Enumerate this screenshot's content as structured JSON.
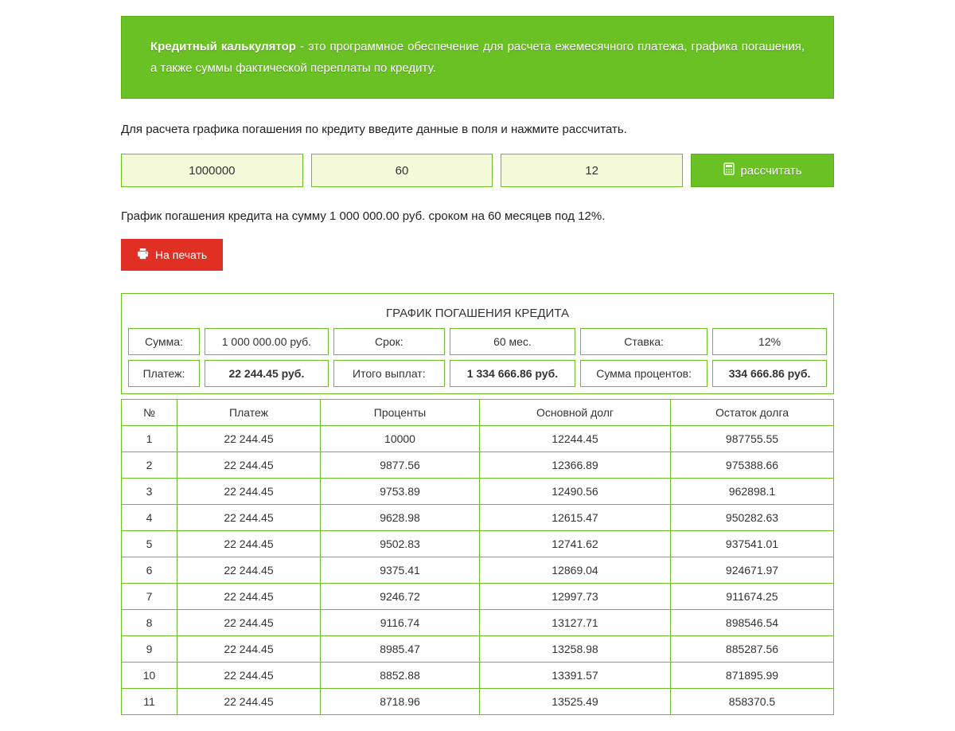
{
  "banner": {
    "title": "Кредитный калькулятор",
    "text": " - это программное обеспечение для расчета ежемесячного платежа, графика погашения, а также суммы фактической переплаты по кредиту."
  },
  "instruction": "Для расчета графика погашения по кредиту введите данные в поля и нажмите рассчитать.",
  "form": {
    "amount": "1000000",
    "months": "60",
    "rate": "12",
    "button": "рассчитать"
  },
  "summary_text": "График погашения кредита на сумму 1 000 000.00 руб. сроком на 60 месяцев под 12%.",
  "print_button": "На печать",
  "table": {
    "title": "ГРАФИК ПОГАШЕНИЯ КРЕДИТА",
    "info1": {
      "sum_label": "Сумма:",
      "sum_value": "1 000 000.00 руб.",
      "term_label": "Срок:",
      "term_value": "60 мес.",
      "rate_label": "Ставка:",
      "rate_value": "12%"
    },
    "info2": {
      "payment_label": "Платеж:",
      "payment_value": "22 244.45 руб.",
      "total_label": "Итого выплат:",
      "total_value": "1 334 666.86 руб.",
      "interest_label": "Сумма процентов:",
      "interest_value": "334 666.86 руб."
    },
    "columns": [
      "№",
      "Платеж",
      "Проценты",
      "Основной долг",
      "Остаток долга"
    ],
    "rows": [
      [
        "1",
        "22 244.45",
        "10000",
        "12244.45",
        "987755.55"
      ],
      [
        "2",
        "22 244.45",
        "9877.56",
        "12366.89",
        "975388.66"
      ],
      [
        "3",
        "22 244.45",
        "9753.89",
        "12490.56",
        "962898.1"
      ],
      [
        "4",
        "22 244.45",
        "9628.98",
        "12615.47",
        "950282.63"
      ],
      [
        "5",
        "22 244.45",
        "9502.83",
        "12741.62",
        "937541.01"
      ],
      [
        "6",
        "22 244.45",
        "9375.41",
        "12869.04",
        "924671.97"
      ],
      [
        "7",
        "22 244.45",
        "9246.72",
        "12997.73",
        "911674.25"
      ],
      [
        "8",
        "22 244.45",
        "9116.74",
        "13127.71",
        "898546.54"
      ],
      [
        "9",
        "22 244.45",
        "8985.47",
        "13258.98",
        "885287.56"
      ],
      [
        "10",
        "22 244.45",
        "8852.88",
        "13391.57",
        "871895.99"
      ],
      [
        "11",
        "22 244.45",
        "8718.96",
        "13525.49",
        "858370.5"
      ]
    ]
  }
}
